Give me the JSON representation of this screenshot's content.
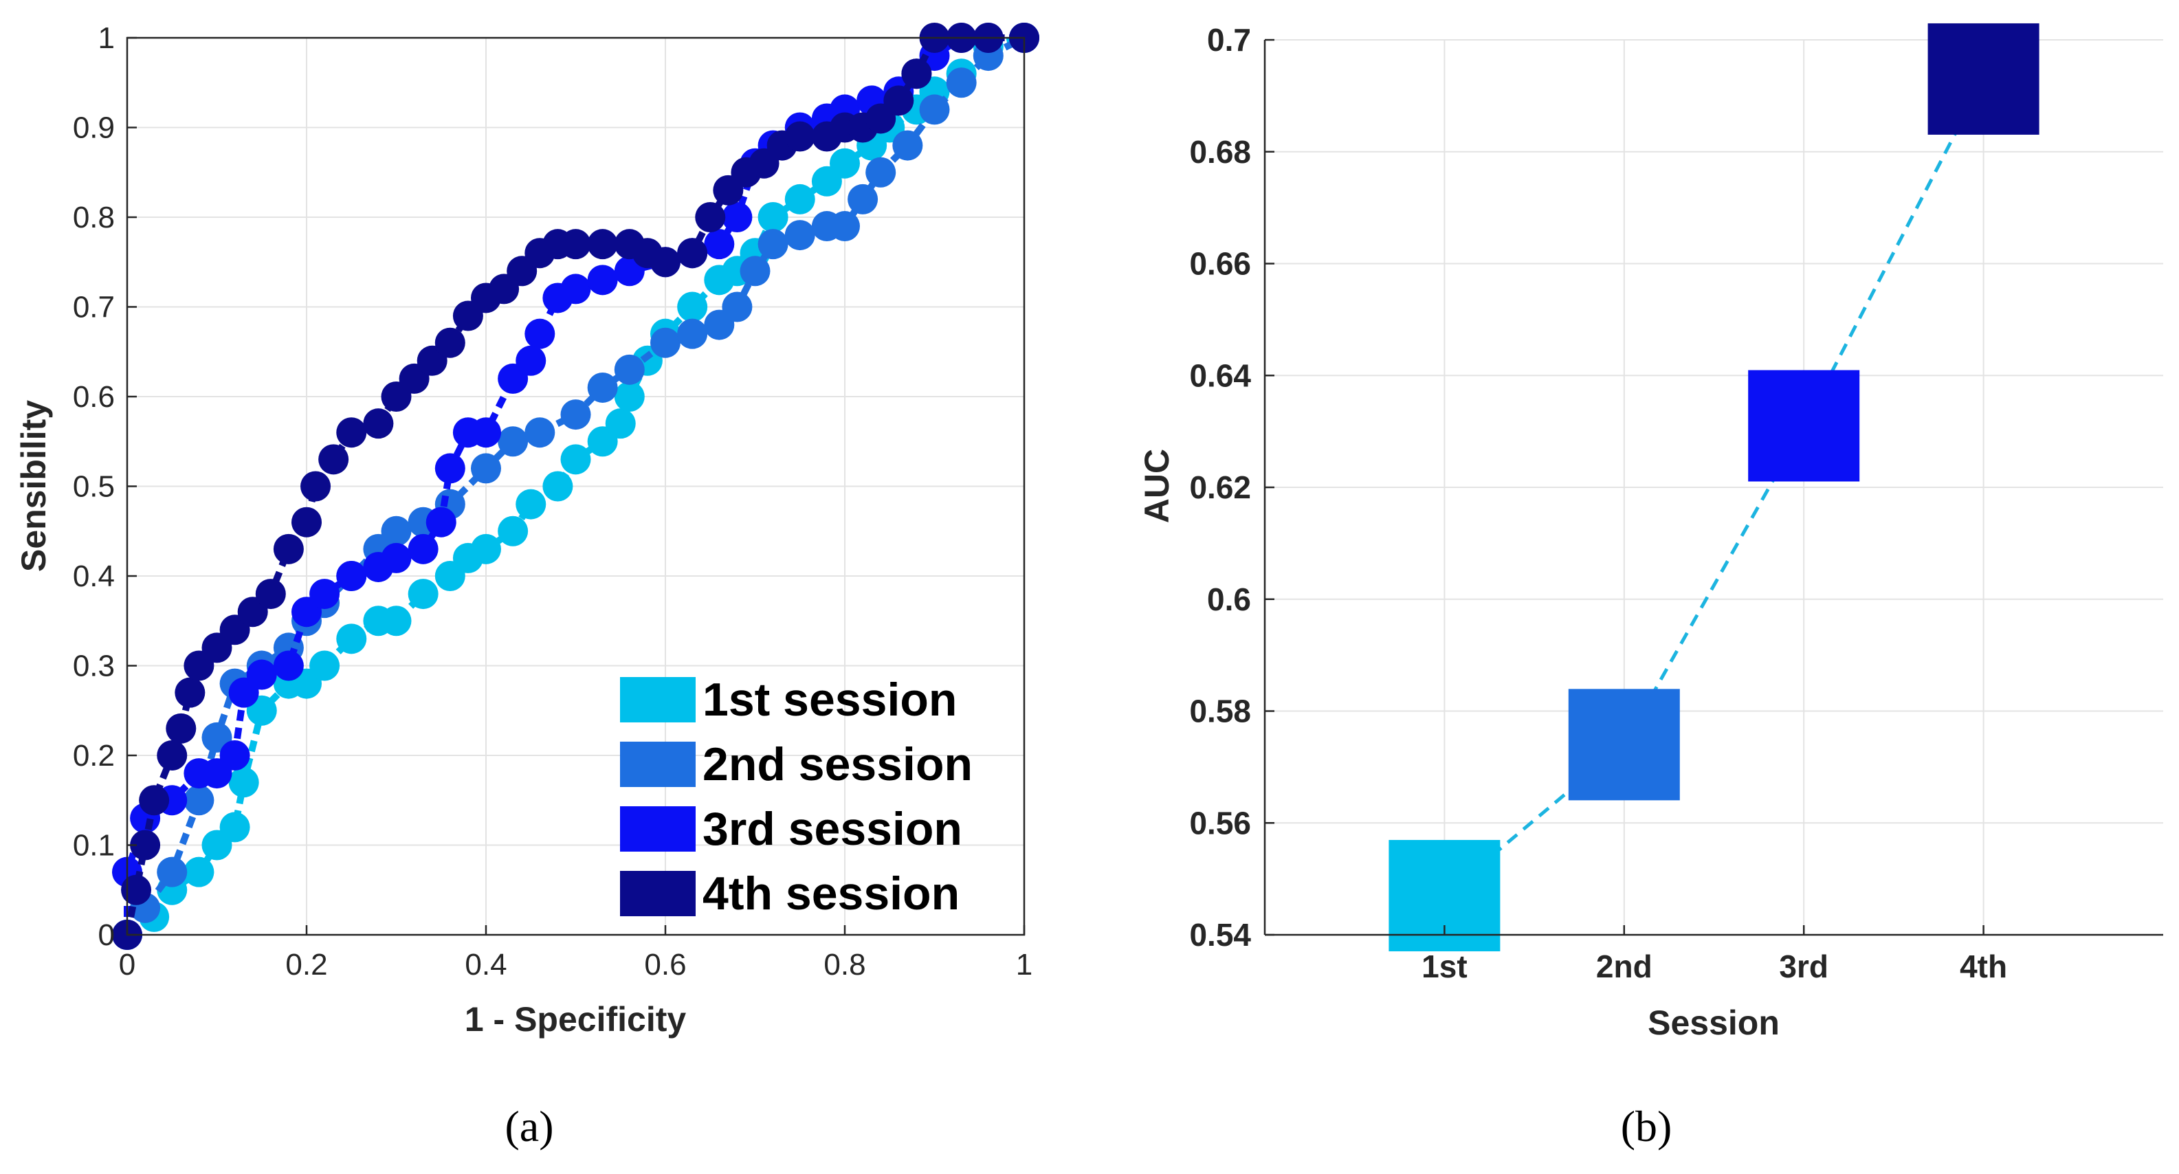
{
  "chart_data": [
    {
      "type": "line",
      "subtitle": "(a)",
      "title": "",
      "xlabel": "1 - Specificity",
      "ylabel": "Sensibility",
      "xlim": [
        0,
        1
      ],
      "ylim": [
        0,
        1
      ],
      "grid": true,
      "legend_position": "bottom-right",
      "x_ticks": [
        "0",
        "0.2",
        "0.4",
        "0.6",
        "0.8",
        "1"
      ],
      "y_ticks": [
        "0",
        "0.1",
        "0.2",
        "0.3",
        "0.4",
        "0.5",
        "0.6",
        "0.7",
        "0.8",
        "0.9",
        "1"
      ],
      "series": [
        {
          "name": "1st session",
          "color": "#00bfeb",
          "x": [
            0.0,
            0.03,
            0.05,
            0.08,
            0.1,
            0.12,
            0.13,
            0.15,
            0.18,
            0.2,
            0.22,
            0.25,
            0.28,
            0.3,
            0.33,
            0.36,
            0.38,
            0.4,
            0.43,
            0.45,
            0.48,
            0.5,
            0.53,
            0.55,
            0.56,
            0.58,
            0.6,
            0.63,
            0.66,
            0.68,
            0.7,
            0.72,
            0.75,
            0.78,
            0.8,
            0.83,
            0.85,
            0.88,
            0.9,
            0.93,
            0.96,
            1.0
          ],
          "y": [
            0.0,
            0.02,
            0.05,
            0.07,
            0.1,
            0.12,
            0.17,
            0.25,
            0.28,
            0.28,
            0.3,
            0.33,
            0.35,
            0.35,
            0.38,
            0.4,
            0.42,
            0.43,
            0.45,
            0.48,
            0.5,
            0.53,
            0.55,
            0.57,
            0.6,
            0.64,
            0.67,
            0.7,
            0.73,
            0.74,
            0.76,
            0.8,
            0.82,
            0.84,
            0.86,
            0.88,
            0.9,
            0.92,
            0.94,
            0.96,
            0.99,
            1.0
          ]
        },
        {
          "name": "2nd session",
          "color": "#1e6fe0",
          "x": [
            0.0,
            0.02,
            0.05,
            0.08,
            0.1,
            0.12,
            0.15,
            0.18,
            0.2,
            0.22,
            0.25,
            0.28,
            0.3,
            0.33,
            0.36,
            0.4,
            0.43,
            0.46,
            0.5,
            0.53,
            0.56,
            0.6,
            0.63,
            0.66,
            0.68,
            0.7,
            0.72,
            0.75,
            0.78,
            0.8,
            0.82,
            0.84,
            0.87,
            0.9,
            0.93,
            0.96,
            1.0
          ],
          "y": [
            0.0,
            0.03,
            0.07,
            0.15,
            0.22,
            0.28,
            0.3,
            0.32,
            0.35,
            0.37,
            0.4,
            0.43,
            0.45,
            0.46,
            0.48,
            0.52,
            0.55,
            0.56,
            0.58,
            0.61,
            0.63,
            0.66,
            0.67,
            0.68,
            0.7,
            0.74,
            0.77,
            0.78,
            0.79,
            0.79,
            0.82,
            0.85,
            0.88,
            0.92,
            0.95,
            0.98,
            1.0
          ]
        },
        {
          "name": "3rd session",
          "color": "#0a10f5",
          "x": [
            0.0,
            0.0,
            0.02,
            0.05,
            0.08,
            0.1,
            0.12,
            0.13,
            0.15,
            0.18,
            0.2,
            0.22,
            0.25,
            0.28,
            0.3,
            0.33,
            0.35,
            0.36,
            0.38,
            0.4,
            0.43,
            0.45,
            0.46,
            0.48,
            0.5,
            0.53,
            0.56,
            0.6,
            0.63,
            0.66,
            0.68,
            0.7,
            0.72,
            0.75,
            0.78,
            0.8,
            0.83,
            0.86,
            0.88,
            0.9,
            0.93,
            0.96,
            1.0
          ],
          "y": [
            0.0,
            0.07,
            0.13,
            0.15,
            0.18,
            0.18,
            0.2,
            0.27,
            0.29,
            0.3,
            0.36,
            0.38,
            0.4,
            0.41,
            0.42,
            0.43,
            0.46,
            0.52,
            0.56,
            0.56,
            0.62,
            0.64,
            0.67,
            0.71,
            0.72,
            0.73,
            0.74,
            0.75,
            0.76,
            0.77,
            0.8,
            0.86,
            0.88,
            0.9,
            0.91,
            0.92,
            0.93,
            0.94,
            0.96,
            0.98,
            1.0,
            1.0,
            1.0
          ]
        },
        {
          "name": "4th session",
          "color": "#0a0a8c",
          "x": [
            0.0,
            0.01,
            0.02,
            0.03,
            0.05,
            0.06,
            0.07,
            0.08,
            0.1,
            0.12,
            0.14,
            0.16,
            0.18,
            0.2,
            0.21,
            0.23,
            0.25,
            0.28,
            0.3,
            0.32,
            0.34,
            0.36,
            0.38,
            0.4,
            0.42,
            0.44,
            0.46,
            0.48,
            0.5,
            0.53,
            0.56,
            0.58,
            0.6,
            0.63,
            0.65,
            0.67,
            0.69,
            0.71,
            0.73,
            0.75,
            0.78,
            0.8,
            0.82,
            0.84,
            0.86,
            0.88,
            0.9,
            0.93,
            0.96,
            1.0
          ],
          "y": [
            0.0,
            0.05,
            0.1,
            0.15,
            0.2,
            0.23,
            0.27,
            0.3,
            0.32,
            0.34,
            0.36,
            0.38,
            0.43,
            0.46,
            0.5,
            0.53,
            0.56,
            0.57,
            0.6,
            0.62,
            0.64,
            0.66,
            0.69,
            0.71,
            0.72,
            0.74,
            0.76,
            0.77,
            0.77,
            0.77,
            0.77,
            0.76,
            0.75,
            0.76,
            0.8,
            0.83,
            0.85,
            0.86,
            0.88,
            0.89,
            0.89,
            0.9,
            0.9,
            0.91,
            0.93,
            0.96,
            1.0,
            1.0,
            1.0,
            1.0
          ]
        }
      ]
    },
    {
      "type": "line",
      "subtitle": "(b)",
      "title": "",
      "xlabel": "Session",
      "ylabel": "AUC",
      "categories": [
        "1st",
        "2nd",
        "3rd",
        "4th"
      ],
      "values": [
        0.547,
        0.574,
        0.631,
        0.693
      ],
      "colors": [
        "#00bfeb",
        "#1e6fe0",
        "#0a10f5",
        "#0a0a8c"
      ],
      "line_color": "#1cb4e0",
      "line_style": "dashed",
      "ylim": [
        0.54,
        0.7
      ],
      "y_ticks": [
        "0.54",
        "0.56",
        "0.58",
        "0.6",
        "0.62",
        "0.64",
        "0.66",
        "0.68",
        "0.7"
      ],
      "grid": true
    }
  ]
}
